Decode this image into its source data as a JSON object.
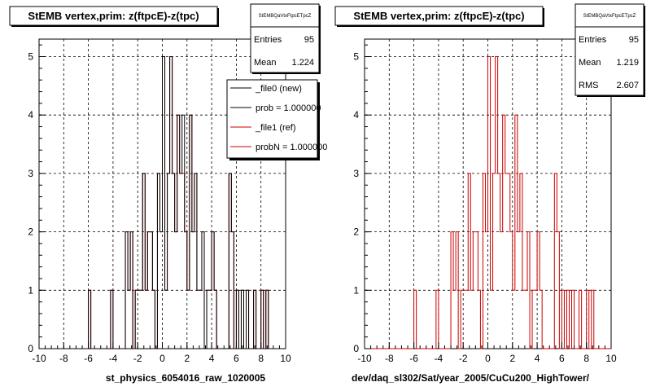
{
  "chart_data": [
    {
      "type": "histogram",
      "title": "StEMB  vertex,prim: z(ftpcE)-z(tpc)",
      "xlabel": "st_physics_6054016_raw_1020005",
      "xlim": [
        -10,
        10
      ],
      "ylim": [
        0,
        5.3
      ],
      "x_ticks": [
        "-10",
        "-8",
        "-6",
        "-4",
        "-2",
        "0",
        "2",
        "4",
        "6",
        "8",
        "10"
      ],
      "y_ticks": [
        "0",
        "1",
        "2",
        "3",
        "4",
        "5"
      ],
      "grid": true,
      "bin_width": 0.2,
      "stats_box": {
        "name": "StEMBQaVtxFtpcETpcZ",
        "entries_label": "Entries",
        "entries": "95",
        "mean_label": "Mean",
        "mean": "1.224"
      },
      "legend": {
        "position": "top-right",
        "entries": [
          {
            "label": "_file0 (new)",
            "color": "#000000"
          },
          {
            "label": "prob = 1.000000",
            "color": "#000000"
          },
          {
            "label": "_file1 (ref)",
            "color": "#cc0000"
          },
          {
            "label": "probN = 1.000000",
            "color": "#cc0000"
          }
        ]
      },
      "series": [
        {
          "color": "#000000",
          "bins": [
            {
              "x": -6.0,
              "y": 1
            },
            {
              "x": -4.2,
              "y": 1
            },
            {
              "x": -3.0,
              "y": 2
            },
            {
              "x": -2.8,
              "y": 1
            },
            {
              "x": -2.6,
              "y": 2
            },
            {
              "x": -2.2,
              "y": 1
            },
            {
              "x": -2.0,
              "y": 1
            },
            {
              "x": -1.8,
              "y": 1
            },
            {
              "x": -1.6,
              "y": 3
            },
            {
              "x": -1.4,
              "y": 1
            },
            {
              "x": -1.2,
              "y": 2
            },
            {
              "x": -1.0,
              "y": 2
            },
            {
              "x": -0.8,
              "y": 1
            },
            {
              "x": -0.4,
              "y": 3
            },
            {
              "x": -0.2,
              "y": 2
            },
            {
              "x": 0.0,
              "y": 5
            },
            {
              "x": 0.2,
              "y": 1
            },
            {
              "x": 0.4,
              "y": 3
            },
            {
              "x": 0.6,
              "y": 5
            },
            {
              "x": 0.8,
              "y": 3
            },
            {
              "x": 1.0,
              "y": 2
            },
            {
              "x": 1.2,
              "y": 4
            },
            {
              "x": 1.4,
              "y": 3
            },
            {
              "x": 1.6,
              "y": 4
            },
            {
              "x": 1.8,
              "y": 2
            },
            {
              "x": 2.0,
              "y": 1
            },
            {
              "x": 2.2,
              "y": 4
            },
            {
              "x": 2.4,
              "y": 2
            },
            {
              "x": 2.6,
              "y": 3
            },
            {
              "x": 2.8,
              "y": 1
            },
            {
              "x": 3.0,
              "y": 1
            },
            {
              "x": 3.2,
              "y": 2
            },
            {
              "x": 3.6,
              "y": 1
            },
            {
              "x": 3.8,
              "y": 1
            },
            {
              "x": 4.0,
              "y": 2
            },
            {
              "x": 4.2,
              "y": 1
            },
            {
              "x": 5.4,
              "y": 3
            },
            {
              "x": 5.6,
              "y": 2
            },
            {
              "x": 6.0,
              "y": 1
            },
            {
              "x": 6.4,
              "y": 1
            },
            {
              "x": 6.8,
              "y": 1
            },
            {
              "x": 7.4,
              "y": 1
            },
            {
              "x": 8.0,
              "y": 1
            },
            {
              "x": 8.4,
              "y": 1
            }
          ]
        },
        {
          "color": "#cc0000",
          "bins": [
            {
              "x": -6.0,
              "y": 1
            },
            {
              "x": -4.2,
              "y": 1
            },
            {
              "x": -3.0,
              "y": 2
            },
            {
              "x": -2.8,
              "y": 1
            },
            {
              "x": -2.6,
              "y": 2
            },
            {
              "x": -2.2,
              "y": 1
            },
            {
              "x": -2.0,
              "y": 1
            },
            {
              "x": -1.8,
              "y": 1
            },
            {
              "x": -1.6,
              "y": 3
            },
            {
              "x": -1.4,
              "y": 1
            },
            {
              "x": -1.2,
              "y": 2
            },
            {
              "x": -1.0,
              "y": 2
            },
            {
              "x": -0.8,
              "y": 1
            },
            {
              "x": -0.4,
              "y": 3
            },
            {
              "x": -0.2,
              "y": 2
            },
            {
              "x": 0.0,
              "y": 5
            },
            {
              "x": 0.2,
              "y": 1
            },
            {
              "x": 0.4,
              "y": 3
            },
            {
              "x": 0.6,
              "y": 5
            },
            {
              "x": 0.8,
              "y": 3
            },
            {
              "x": 1.0,
              "y": 2
            },
            {
              "x": 1.2,
              "y": 4
            },
            {
              "x": 1.4,
              "y": 3
            },
            {
              "x": 1.6,
              "y": 3
            },
            {
              "x": 1.8,
              "y": 2
            },
            {
              "x": 2.0,
              "y": 1
            },
            {
              "x": 2.2,
              "y": 4
            },
            {
              "x": 2.4,
              "y": 2
            },
            {
              "x": 2.6,
              "y": 3
            },
            {
              "x": 2.8,
              "y": 1
            },
            {
              "x": 3.0,
              "y": 1
            },
            {
              "x": 3.2,
              "y": 2
            },
            {
              "x": 3.6,
              "y": 1
            },
            {
              "x": 3.8,
              "y": 1
            },
            {
              "x": 4.0,
              "y": 2
            },
            {
              "x": 4.2,
              "y": 1
            },
            {
              "x": 5.4,
              "y": 3
            },
            {
              "x": 5.6,
              "y": 2
            },
            {
              "x": 6.0,
              "y": 1
            },
            {
              "x": 6.4,
              "y": 1
            },
            {
              "x": 6.8,
              "y": 1
            },
            {
              "x": 7.4,
              "y": 1
            },
            {
              "x": 8.0,
              "y": 1
            },
            {
              "x": 8.4,
              "y": 1
            }
          ]
        }
      ]
    },
    {
      "type": "histogram",
      "title": "StEMB  vertex,prim: z(ftpcE)-z(tpc)",
      "xlabel": "dev/daq_sl302/Sat/year_2005/CuCu200_HighTower/",
      "xlim": [
        -10,
        10
      ],
      "ylim": [
        0,
        5.3
      ],
      "x_ticks": [
        "-10",
        "-8",
        "-6",
        "-4",
        "-2",
        "0",
        "2",
        "4",
        "6",
        "8",
        "10"
      ],
      "y_ticks": [
        "0",
        "1",
        "2",
        "3",
        "4",
        "5"
      ],
      "grid": true,
      "bin_width": 0.2,
      "stats_box": {
        "name": "StEMBQaVtxFtpcETpcZ",
        "entries_label": "Entries",
        "entries": "95",
        "mean_label": "Mean",
        "mean": "1.219",
        "rms_label": "RMS",
        "rms": "2.607"
      },
      "series": [
        {
          "color": "#cc0000",
          "bins": [
            {
              "x": -6.0,
              "y": 1
            },
            {
              "x": -4.2,
              "y": 1
            },
            {
              "x": -3.0,
              "y": 2
            },
            {
              "x": -2.8,
              "y": 1
            },
            {
              "x": -2.6,
              "y": 2
            },
            {
              "x": -2.2,
              "y": 1
            },
            {
              "x": -2.0,
              "y": 1
            },
            {
              "x": -1.8,
              "y": 1
            },
            {
              "x": -1.6,
              "y": 3
            },
            {
              "x": -1.4,
              "y": 1
            },
            {
              "x": -1.2,
              "y": 2
            },
            {
              "x": -1.0,
              "y": 2
            },
            {
              "x": -0.8,
              "y": 1
            },
            {
              "x": -0.4,
              "y": 3
            },
            {
              "x": -0.2,
              "y": 2
            },
            {
              "x": 0.0,
              "y": 5
            },
            {
              "x": 0.2,
              "y": 1
            },
            {
              "x": 0.4,
              "y": 3
            },
            {
              "x": 0.6,
              "y": 5
            },
            {
              "x": 0.8,
              "y": 3
            },
            {
              "x": 1.0,
              "y": 2
            },
            {
              "x": 1.2,
              "y": 4
            },
            {
              "x": 1.4,
              "y": 3
            },
            {
              "x": 1.6,
              "y": 3
            },
            {
              "x": 1.8,
              "y": 2
            },
            {
              "x": 2.0,
              "y": 1
            },
            {
              "x": 2.2,
              "y": 4
            },
            {
              "x": 2.4,
              "y": 2
            },
            {
              "x": 2.6,
              "y": 3
            },
            {
              "x": 2.8,
              "y": 1
            },
            {
              "x": 3.0,
              "y": 1
            },
            {
              "x": 3.2,
              "y": 2
            },
            {
              "x": 3.6,
              "y": 1
            },
            {
              "x": 3.8,
              "y": 1
            },
            {
              "x": 4.0,
              "y": 2
            },
            {
              "x": 4.2,
              "y": 1
            },
            {
              "x": 5.4,
              "y": 3
            },
            {
              "x": 5.6,
              "y": 2
            },
            {
              "x": 6.0,
              "y": 1
            },
            {
              "x": 6.4,
              "y": 1
            },
            {
              "x": 6.8,
              "y": 1
            },
            {
              "x": 7.4,
              "y": 1
            },
            {
              "x": 8.0,
              "y": 1
            },
            {
              "x": 8.4,
              "y": 1
            }
          ]
        }
      ]
    }
  ]
}
